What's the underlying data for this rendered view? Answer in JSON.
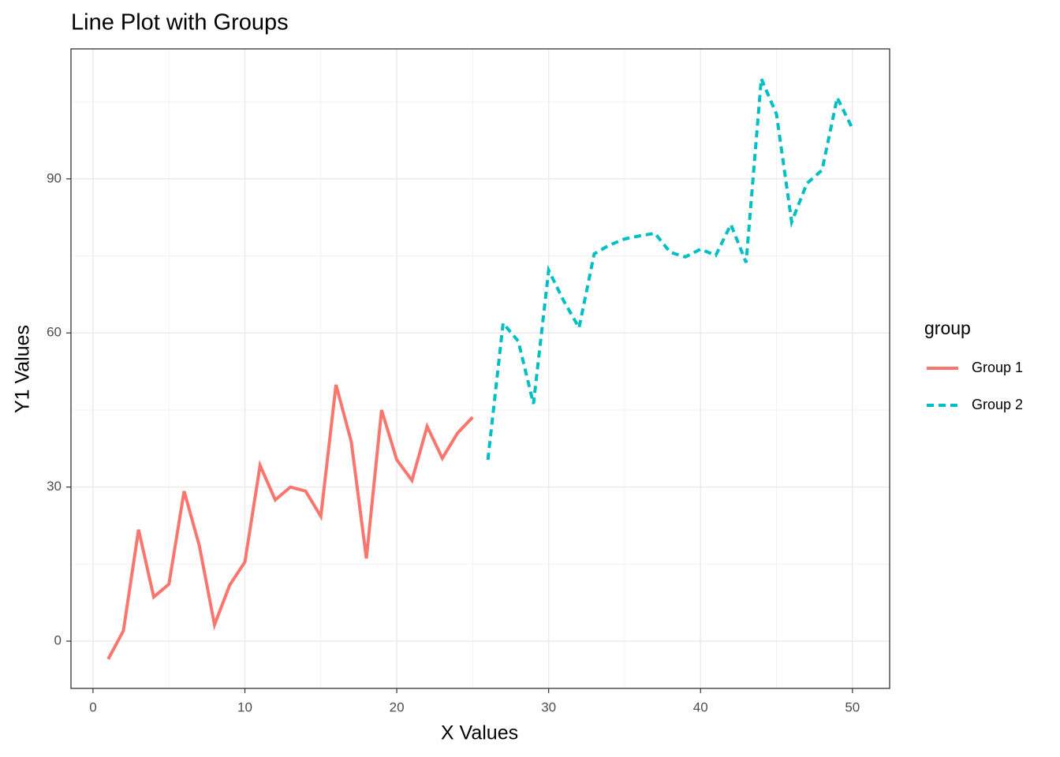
{
  "chart_data": {
    "type": "line",
    "title": "Line Plot with Groups",
    "x_label": "X Values",
    "y_label": "Y1 Values",
    "legend_title": "group",
    "legend_position": "right",
    "grid": true,
    "xlim": [
      -1.45,
      52.45
    ],
    "ylim": [
      -9.2,
      115.3
    ],
    "xticks": [
      0,
      10,
      20,
      30,
      40,
      50
    ],
    "yticks": [
      0,
      30,
      60,
      90
    ],
    "x_minor_grid": [
      5,
      15,
      25,
      35,
      45
    ],
    "y_minor_grid": [
      15,
      45,
      75,
      105
    ],
    "series": [
      {
        "name": "Group 1",
        "color": "#F8766D",
        "dash": "solid",
        "x": [
          1,
          2,
          3,
          4,
          5,
          6,
          7,
          8,
          9,
          10,
          11,
          12,
          13,
          14,
          15,
          16,
          17,
          18,
          19,
          20,
          21,
          22,
          23,
          24,
          25
        ],
        "values": [
          -3.5,
          2,
          21.7,
          8.6,
          11.1,
          29.2,
          18.6,
          3.2,
          10.9,
          15.4,
          34.2,
          27.5,
          30,
          29.2,
          24.3,
          49.9,
          38.9,
          16.1,
          45,
          35.3,
          31.3,
          41.8,
          35.6,
          40.5,
          43.6
        ]
      },
      {
        "name": "Group 2",
        "color": "#00BFC4",
        "dash": "dashed",
        "x": [
          26,
          27,
          28,
          29,
          30,
          31,
          32,
          33,
          34,
          35,
          36,
          37,
          38,
          39,
          40,
          41,
          42,
          43,
          44,
          45,
          46,
          47,
          48,
          49,
          50
        ],
        "values": [
          35.3,
          61.9,
          58.4,
          46.2,
          72.2,
          66.2,
          61,
          75.4,
          77.1,
          78.3,
          78.9,
          79.4,
          75.7,
          74.8,
          76.3,
          75.1,
          81.1,
          73.7,
          109.5,
          102.6,
          81.6,
          89.1,
          91.7,
          105.8,
          99.8
        ]
      }
    ]
  }
}
